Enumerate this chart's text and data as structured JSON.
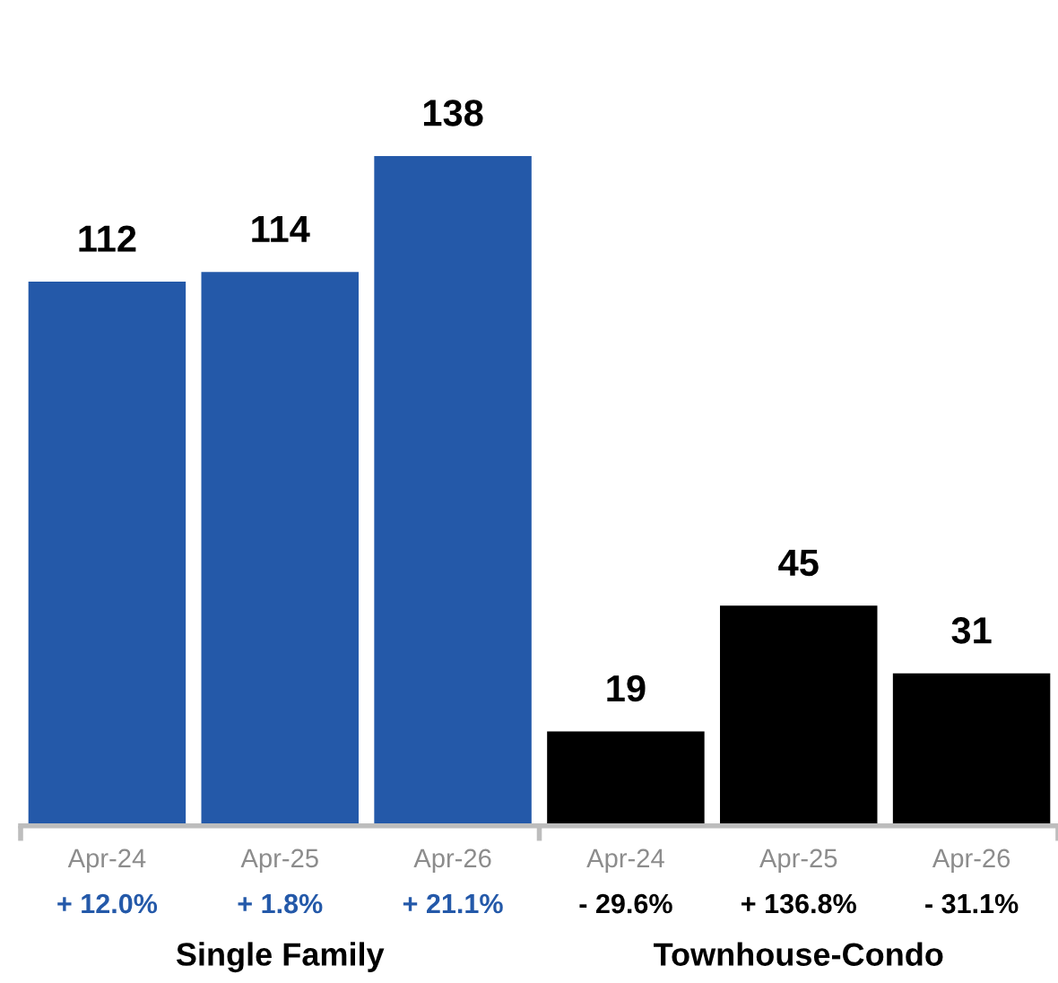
{
  "chart_data": {
    "type": "bar",
    "categories": [
      "Apr-24",
      "Apr-25",
      "Apr-26",
      "Apr-24",
      "Apr-25",
      "Apr-26"
    ],
    "values": [
      112,
      114,
      138,
      19,
      45,
      31
    ],
    "colors": [
      "#2459a9",
      "#2459a9",
      "#2459a9",
      "#000000",
      "#000000",
      "#000000"
    ],
    "data_labels": true,
    "annotations": [
      "+ 12.0%",
      "+ 1.8%",
      "+ 21.1%",
      "- 29.6%",
      "+ 136.8%",
      "- 31.1%",
      "Single Family",
      "Townhouse-Condo"
    ]
  }
}
